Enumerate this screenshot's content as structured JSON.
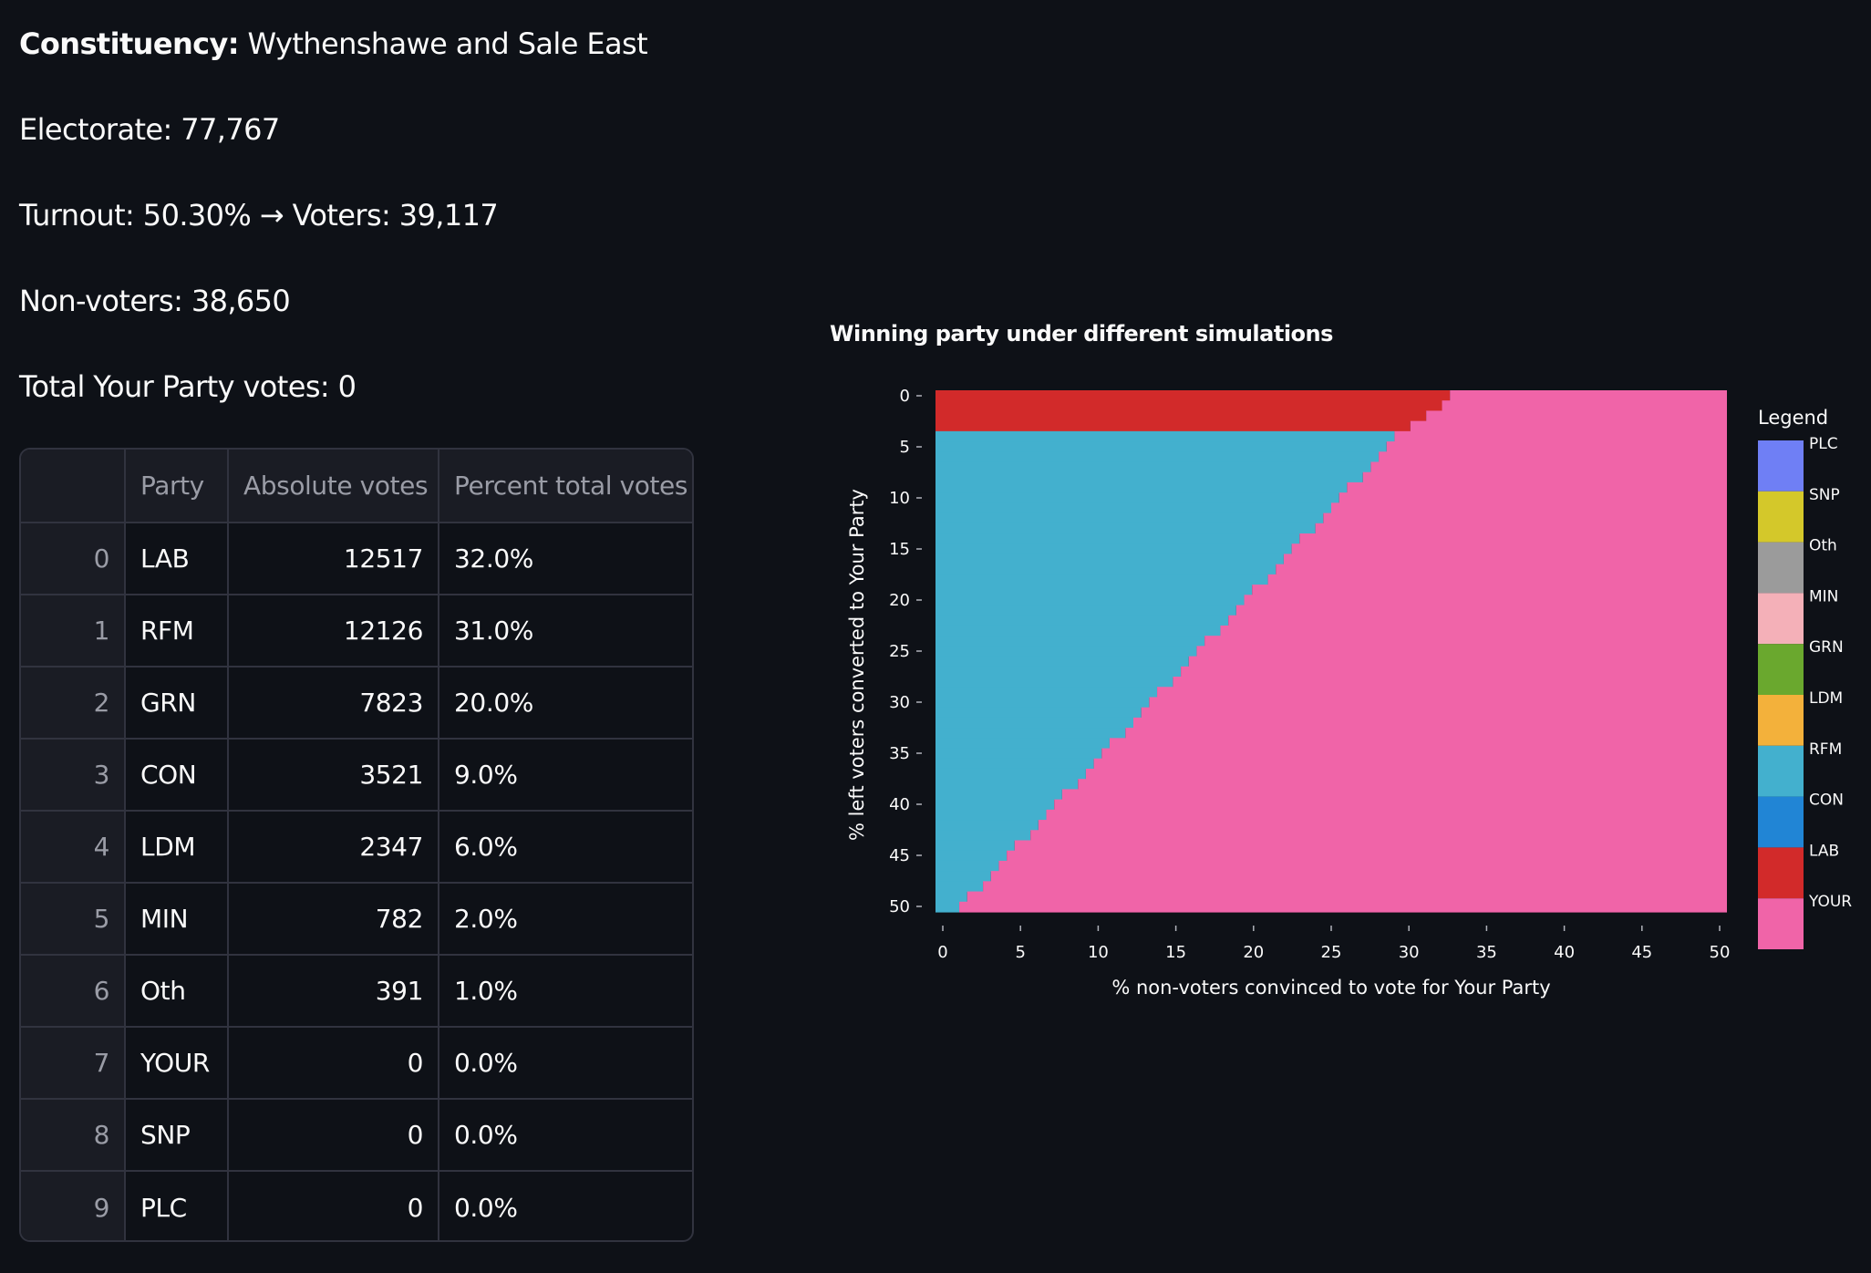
{
  "info": {
    "constituency_label": "Constituency:",
    "constituency_value": "Wythenshawe and Sale East",
    "electorate": "Electorate: 77,767",
    "turnout": "Turnout: 50.30% → Voters: 39,117",
    "non_voters": "Non-voters: 38,650",
    "total_your_party": "Total Your Party votes: 0"
  },
  "table": {
    "headers": [
      "",
      "Party",
      "Absolute votes",
      "Percent total votes"
    ],
    "rows": [
      {
        "index": "0",
        "party": "LAB",
        "votes": "12517",
        "percent": "32.0%"
      },
      {
        "index": "1",
        "party": "RFM",
        "votes": "12126",
        "percent": "31.0%"
      },
      {
        "index": "2",
        "party": "GRN",
        "votes": "7823",
        "percent": "20.0%"
      },
      {
        "index": "3",
        "party": "CON",
        "votes": "3521",
        "percent": "9.0%"
      },
      {
        "index": "4",
        "party": "LDM",
        "votes": "2347",
        "percent": "6.0%"
      },
      {
        "index": "5",
        "party": "MIN",
        "votes": "782",
        "percent": "2.0%"
      },
      {
        "index": "6",
        "party": "Oth",
        "votes": "391",
        "percent": "1.0%"
      },
      {
        "index": "7",
        "party": "YOUR",
        "votes": "0",
        "percent": "0.0%"
      },
      {
        "index": "8",
        "party": "SNP",
        "votes": "0",
        "percent": "0.0%"
      },
      {
        "index": "9",
        "party": "PLC",
        "votes": "0",
        "percent": "0.0%"
      }
    ]
  },
  "chart_data": {
    "type": "heatmap",
    "title": "Winning party under different simulations",
    "xlabel": "% non-voters convinced to vote for Your Party",
    "ylabel": "% left voters converted to Your Party",
    "xlim": [
      0,
      50
    ],
    "ylim": [
      0,
      50
    ],
    "x_ticks": [
      0,
      5,
      10,
      15,
      20,
      25,
      30,
      35,
      40,
      45,
      50
    ],
    "y_ticks": [
      0,
      5,
      10,
      15,
      20,
      25,
      30,
      35,
      40,
      45,
      50
    ],
    "legend_title": "Legend",
    "legend": [
      {
        "label": "PLC",
        "color": "#6f7ff5"
      },
      {
        "label": "SNP",
        "color": "#d4c82a"
      },
      {
        "label": "Oth",
        "color": "#9b9b9b"
      },
      {
        "label": "MIN",
        "color": "#f4b0b8"
      },
      {
        "label": "GRN",
        "color": "#6aa82e"
      },
      {
        "label": "LDM",
        "color": "#f3b13b"
      },
      {
        "label": "RFM",
        "color": "#43b0ce"
      },
      {
        "label": "CON",
        "color": "#2185d5"
      },
      {
        "label": "LAB",
        "color": "#d22a2a"
      },
      {
        "label": "YOUR",
        "color": "#f064a8"
      }
    ],
    "lab_wins_up_to_y": 3,
    "boundary_x_by_y": [
      [
        0,
        32.5
      ],
      [
        1,
        32
      ],
      [
        2,
        31
      ],
      [
        3,
        30
      ],
      [
        4,
        29
      ],
      [
        5,
        28.5
      ],
      [
        6,
        28
      ],
      [
        7,
        27.5
      ],
      [
        8,
        27
      ],
      [
        9,
        26
      ],
      [
        10,
        25.5
      ],
      [
        11,
        25
      ],
      [
        12,
        24.5
      ],
      [
        13,
        24
      ],
      [
        14,
        23
      ],
      [
        15,
        22.5
      ],
      [
        16,
        22
      ],
      [
        17,
        21.5
      ],
      [
        18,
        21
      ],
      [
        19,
        20
      ],
      [
        20,
        19.5
      ],
      [
        21,
        19
      ],
      [
        22,
        18.5
      ],
      [
        23,
        18
      ],
      [
        24,
        17
      ],
      [
        25,
        16.5
      ],
      [
        26,
        16
      ],
      [
        27,
        15.5
      ],
      [
        28,
        15
      ],
      [
        29,
        14
      ],
      [
        30,
        13.5
      ],
      [
        31,
        13
      ],
      [
        32,
        12.5
      ],
      [
        33,
        12
      ],
      [
        34,
        11
      ],
      [
        35,
        10.5
      ],
      [
        36,
        10
      ],
      [
        37,
        9.5
      ],
      [
        38,
        9
      ],
      [
        39,
        8
      ],
      [
        40,
        7.5
      ],
      [
        41,
        7
      ],
      [
        42,
        6.5
      ],
      [
        43,
        6
      ],
      [
        44,
        5
      ],
      [
        45,
        4.5
      ],
      [
        46,
        4
      ],
      [
        47,
        3.5
      ],
      [
        48,
        3
      ],
      [
        49,
        2
      ],
      [
        50,
        1.5
      ]
    ]
  }
}
